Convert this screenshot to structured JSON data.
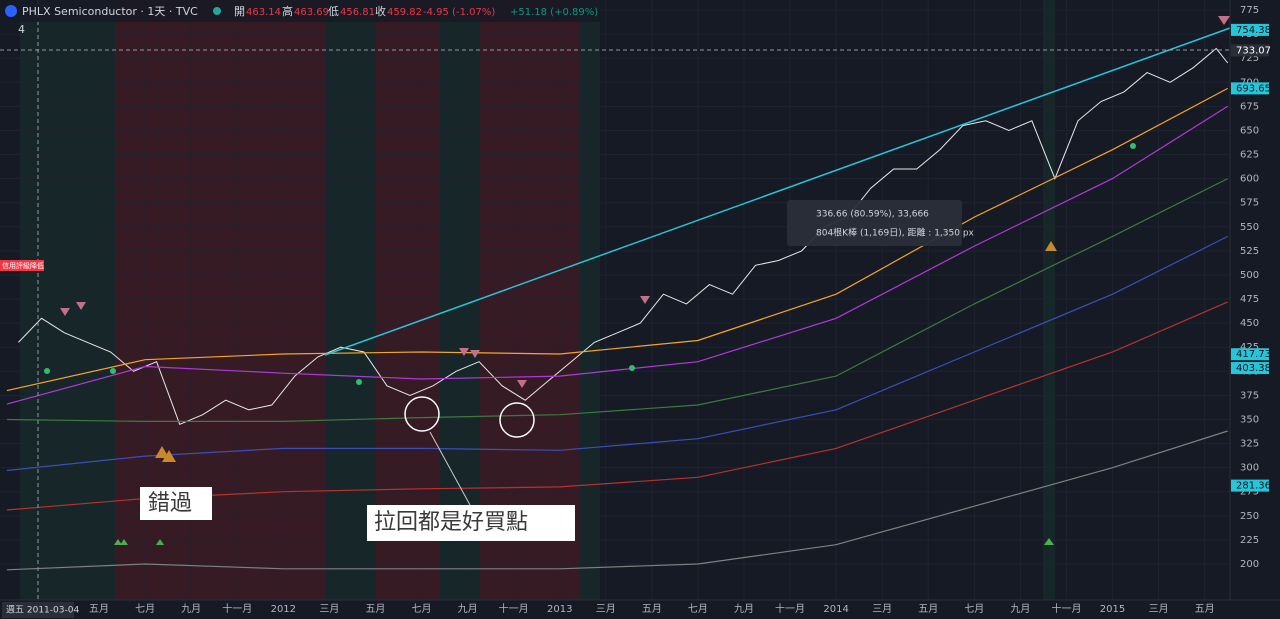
{
  "header": {
    "symbol": "PHLX Semiconductor · 1天 · TVC",
    "open_label": "開",
    "open": "463.14",
    "high_label": "高",
    "high": "463.69",
    "low_label": "低",
    "low": "456.81",
    "close_label": "收",
    "close": "459.82",
    "change": "-4.95 (-1.07%)",
    "change2": "+51.18 (+0.89%)",
    "indicators": "4"
  },
  "annotations": {
    "missed": "錯過",
    "pullback": "拉回都是好買點",
    "credit": "信用評級降低",
    "measure1": "336.66 (80.59%), 33,666",
    "measure2": "804根K棒 (1,169日), 距離 : 1,350 px",
    "crosshair_date": "週五 2011-03-04"
  },
  "chart_data": {
    "type": "line",
    "ylim": [
      200,
      775
    ],
    "yticks": [
      200,
      225,
      250,
      275,
      300,
      325,
      350,
      375,
      400,
      425,
      450,
      475,
      500,
      525,
      550,
      575,
      600,
      625,
      650,
      675,
      700,
      725,
      750,
      775
    ],
    "xlim": [
      -0.3,
      53.1
    ],
    "xticks": [
      {
        "value": 4,
        "label": "五月"
      },
      {
        "value": 6,
        "label": "七月"
      },
      {
        "value": 8,
        "label": "九月"
      },
      {
        "value": 10,
        "label": "十一月"
      },
      {
        "value": 12,
        "label": "2012"
      },
      {
        "value": 14,
        "label": "三月"
      },
      {
        "value": 16,
        "label": "五月"
      },
      {
        "value": 18,
        "label": "七月"
      },
      {
        "value": 20,
        "label": "九月"
      },
      {
        "value": 22,
        "label": "十一月"
      },
      {
        "value": 24,
        "label": "2013"
      },
      {
        "value": 26,
        "label": "三月"
      },
      {
        "value": 28,
        "label": "五月"
      },
      {
        "value": 30,
        "label": "七月"
      },
      {
        "value": 32,
        "label": "九月"
      },
      {
        "value": 34,
        "label": "十一月"
      },
      {
        "value": 36,
        "label": "2014"
      },
      {
        "value": 38,
        "label": "三月"
      },
      {
        "value": 40,
        "label": "五月"
      },
      {
        "value": 42,
        "label": "七月"
      },
      {
        "value": 44,
        "label": "九月"
      },
      {
        "value": 46,
        "label": "十一月"
      },
      {
        "value": 48,
        "label": "2015"
      },
      {
        "value": 50,
        "label": "三月"
      },
      {
        "value": 52,
        "label": "五月"
      }
    ],
    "series": [
      {
        "color": "#e8e8e8",
        "x": [
          0.5,
          1.5,
          2.5,
          3.5,
          4.5,
          5.5,
          6.5,
          7.5,
          8.5,
          9.5,
          10.5,
          11.5,
          12.5,
          13.5,
          14.5,
          15.5,
          16.5,
          17.5,
          18.5,
          19.5,
          20.5,
          21.5,
          22.5,
          23.5,
          24.5,
          25.5,
          26.5,
          27.5,
          28.5,
          29.5,
          30.5,
          31.5,
          32.5,
          33.5,
          34.5,
          35.5,
          36.5,
          37.5,
          38.5,
          39.5,
          40.5,
          41.5,
          42.5,
          43.5,
          44.5,
          45.5,
          46.5,
          47.5,
          48.5,
          49.5,
          50.5,
          51.5,
          52.5,
          53
        ],
        "values": [
          430,
          455,
          440,
          430,
          420,
          400,
          410,
          345,
          355,
          370,
          360,
          365,
          395,
          415,
          425,
          420,
          385,
          375,
          385,
          400,
          410,
          385,
          370,
          390,
          410,
          430,
          440,
          450,
          480,
          470,
          490,
          480,
          510,
          515,
          525,
          550,
          560,
          590,
          610,
          610,
          630,
          655,
          660,
          650,
          660,
          600,
          660,
          680,
          690,
          710,
          700,
          715,
          735,
          720
        ]
      },
      {
        "color": "#f5a623",
        "x": [
          0,
          6,
          12,
          18,
          24,
          30,
          36,
          42,
          48,
          53
        ],
        "values": [
          380,
          412,
          418,
          420,
          418,
          432,
          480,
          560,
          630,
          693.65
        ]
      },
      {
        "color": "#b03ad6",
        "x": [
          0,
          6,
          12,
          18,
          24,
          30,
          36,
          42,
          48,
          53
        ],
        "values": [
          366,
          405,
          398,
          392,
          395,
          410,
          455,
          530,
          600,
          675
        ]
      },
      {
        "color": "#3d7a3d",
        "x": [
          0,
          6,
          12,
          18,
          24,
          30,
          36,
          42,
          48,
          53
        ],
        "values": [
          350,
          348,
          348,
          352,
          355,
          365,
          395,
          470,
          540,
          600
        ]
      },
      {
        "color": "#3b4fb8",
        "x": [
          0,
          6,
          12,
          18,
          24,
          30,
          36,
          42,
          48,
          53
        ],
        "values": [
          297,
          312,
          320,
          320,
          318,
          330,
          360,
          420,
          480,
          540
        ]
      },
      {
        "color": "#b8322e",
        "x": [
          0,
          6,
          12,
          18,
          24,
          30,
          36,
          42,
          48,
          53
        ],
        "values": [
          256,
          268,
          275,
          278,
          280,
          290,
          320,
          370,
          420,
          472
        ]
      },
      {
        "color": "#808080",
        "x": [
          0,
          6,
          12,
          18,
          24,
          30,
          36,
          42,
          48,
          53
        ],
        "values": [
          194,
          200,
          195,
          195,
          195,
          200,
          220,
          260,
          300,
          338
        ]
      }
    ],
    "price_labels": [
      754.38,
      733.07,
      693.65,
      417.73,
      403.38,
      281.36
    ],
    "price_label_colors": [
      "#26c6da",
      "#2a2e39",
      "#26c6da",
      "#26c6da",
      "#26c6da",
      "#26c6da"
    ]
  }
}
